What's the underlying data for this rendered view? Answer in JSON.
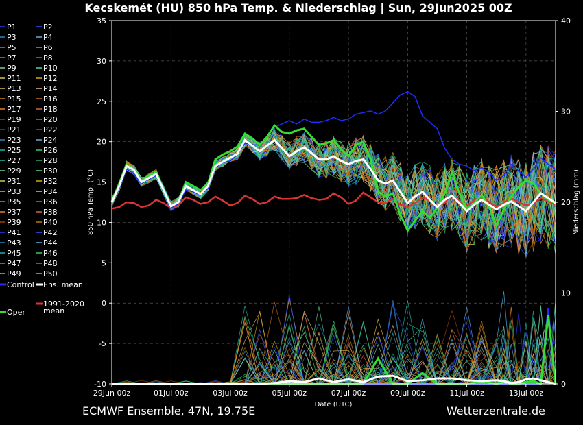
{
  "chart_data": {
    "type": "line",
    "title": "Kecskemét  (HU)  850 hPa Temp. & Niederschlag | Sun, 29Jun2025 00Z",
    "xlabel": "Date (UTC)",
    "ylabel_left": "850 hPa Temp. (°C)",
    "ylabel_right": "Niederschlag (mm)",
    "x_ticks": [
      "29Jun 00z",
      "01Jul 00z",
      "03Jul 00z",
      "05Jul 00z",
      "07Jul 00z",
      "09Jul 00z",
      "11Jul 00z",
      "13Jul 00z"
    ],
    "x_range_days": [
      0,
      15
    ],
    "y_left_range": [
      -10,
      35
    ],
    "y_left_ticks": [
      -10,
      -5,
      0,
      5,
      10,
      15,
      20,
      25,
      30,
      35
    ],
    "y_right_range": [
      0,
      40
    ],
    "y_right_ticks": [
      0,
      10,
      20,
      30,
      40
    ],
    "grid": true,
    "legend": {
      "placement": "left",
      "members": [
        "P1",
        "P2",
        "P3",
        "P4",
        "P5",
        "P6",
        "P7",
        "P8",
        "P9",
        "P10",
        "P11",
        "P12",
        "P13",
        "P14",
        "P15",
        "P16",
        "P17",
        "P18",
        "P19",
        "P20",
        "P21",
        "P22",
        "P23",
        "P24",
        "P25",
        "P26",
        "P27",
        "P28",
        "P29",
        "P30",
        "P31",
        "P32",
        "P33",
        "P34",
        "P35",
        "P36",
        "P37",
        "P38",
        "P39",
        "P40",
        "P41",
        "P42",
        "P43",
        "P44",
        "P45",
        "P46",
        "P47",
        "P48",
        "P49",
        "P50"
      ],
      "control_label": "Control",
      "mean_label": "Ens. mean",
      "oper_label": "Oper",
      "clim_label_1": "1991-2020",
      "clim_label_2": "mean"
    },
    "member_colors": [
      "#2a3cff",
      "#3355ff",
      "#2e86c1",
      "#5dade2",
      "#20b2aa",
      "#2ecc71",
      "#1abc9c",
      "#27ae60",
      "#7dcea0",
      "#58d68d",
      "#c8c85a",
      "#d4ac0d",
      "#e6b450",
      "#f0b27a",
      "#d68910",
      "#ca6f1e",
      "#e67e22",
      "#cd6155",
      "#a04000",
      "#b9770e"
    ],
    "temperature": {
      "x_days": [
        0,
        0.25,
        0.5,
        0.75,
        1,
        1.25,
        1.5,
        1.75,
        2,
        2.25,
        2.5,
        2.75,
        3,
        3.25,
        3.5,
        3.75,
        4,
        4.25,
        4.5,
        4.75,
        5,
        5.25,
        5.5,
        5.75,
        6,
        6.25,
        6.5,
        6.75,
        7,
        7.25,
        7.5,
        7.75,
        8,
        8.25,
        8.5,
        8.75,
        9,
        9.25,
        9.5,
        9.75,
        10,
        10.25,
        10.5,
        10.75,
        11,
        11.25,
        11.5,
        11.75,
        12,
        12.25,
        12.5,
        12.75,
        13,
        13.25,
        13.5,
        13.75,
        14,
        14.25,
        14.5,
        14.75,
        15
      ],
      "ens_mean": [
        12.5,
        14.5,
        17,
        16.5,
        15,
        15.5,
        16,
        14,
        12,
        12.5,
        14.5,
        14,
        13.5,
        14.5,
        17,
        17.5,
        18,
        18.5,
        20.2,
        19.5,
        18.8,
        19.5,
        20.2,
        19.2,
        18.2,
        18.8,
        19.3,
        18.6,
        17.8,
        17.8,
        18.2,
        17.6,
        17.2,
        17.6,
        17.8,
        16.6,
        15.2,
        14.8,
        15.2,
        13.8,
        12.4,
        13.2,
        13.8,
        12.8,
        11.9,
        12.8,
        13.3,
        12.4,
        11.4,
        12.2,
        12.8,
        12.2,
        11.6,
        12.2,
        12.6,
        12.0,
        11.4,
        12.5,
        13.6,
        13.0,
        12.4
      ],
      "oper": [
        12.6,
        14.8,
        17.2,
        16.6,
        15.2,
        15.8,
        16.2,
        14.0,
        12.0,
        12.5,
        15.0,
        14.5,
        14.0,
        14.8,
        17.8,
        18.4,
        18.8,
        19.4,
        21.0,
        20.4,
        19.6,
        20.6,
        22.0,
        21.2,
        21.0,
        21.4,
        21.6,
        20.6,
        19.6,
        19.8,
        20.2,
        19.0,
        18.2,
        19.6,
        20.0,
        17.8,
        13.8,
        13.2,
        13.6,
        11.0,
        9.0,
        10.2,
        11.4,
        10.6,
        11.8,
        13.6,
        16.2,
        13.6,
        11.6,
        12.4,
        13.4,
        12.0,
        9.6,
        11.6,
        13.2,
        14.4,
        15.2,
        14.8,
        13.6,
        12.8,
        12.4
      ],
      "control": [
        12.4,
        14.2,
        16.6,
        16.0,
        14.8,
        15.4,
        15.8,
        13.8,
        11.8,
        12.3,
        14.0,
        13.8,
        13.4,
        14.2,
        16.8,
        17.4,
        17.6,
        18.4,
        19.8,
        19.6,
        19.6,
        20.6,
        21.8,
        22.2,
        22.6,
        22.2,
        22.8,
        22.4,
        22.4,
        22.6,
        23.0,
        22.6,
        22.8,
        23.4,
        23.6,
        23.8,
        23.4,
        23.8,
        24.8,
        25.8,
        26.2,
        25.6,
        23.2,
        22.4,
        21.6,
        19.2,
        17.8,
        17.2,
        17.0,
        16.4,
        16.8,
        16.2,
        15.2,
        15.8,
        17.2,
        16.4,
        15.6,
        16.6,
        18.0,
        17.2,
        16.6
      ],
      "clim_mean": [
        11.7,
        11.9,
        12.5,
        12.4,
        11.9,
        12.1,
        12.8,
        12.4,
        11.8,
        12.1,
        13.1,
        12.8,
        12.3,
        12.5,
        13.2,
        12.7,
        12.1,
        12.4,
        13.3,
        12.9,
        12.3,
        12.5,
        13.2,
        12.9,
        12.9,
        13.0,
        13.4,
        13.0,
        12.8,
        12.9,
        13.6,
        13.1,
        12.3,
        12.7,
        13.7,
        13.1,
        12.5,
        12.4,
        12.9,
        12.2,
        11.9,
        12.4,
        13.1,
        12.7,
        11.9,
        12.5,
        13.3,
        12.6,
        12.1,
        12.7,
        13.2,
        12.5,
        11.9,
        12.4,
        13.0,
        12.5,
        12.1,
        12.4,
        13.0,
        12.6,
        12.2
      ]
    },
    "precipitation": {
      "x_days": [
        0,
        0.5,
        1,
        1.5,
        2,
        2.5,
        3,
        3.5,
        4,
        4.5,
        5,
        5.5,
        6,
        6.5,
        7,
        7.5,
        8,
        8.5,
        9,
        9.5,
        10,
        10.5,
        11,
        11.5,
        12,
        12.5,
        13,
        13.25,
        13.5,
        13.75,
        14,
        14.25,
        14.5,
        14.75,
        15
      ],
      "ens_mean": [
        0,
        0,
        0,
        0,
        0,
        0,
        0,
        0,
        0,
        0,
        0,
        0.1,
        0.3,
        0.2,
        0.6,
        0.2,
        0.5,
        0.2,
        0.8,
        0.9,
        0.3,
        0.4,
        0.6,
        0.6,
        0.4,
        0.3,
        0.4,
        0.3,
        0.1,
        0.2,
        0.5,
        0.6,
        0.4,
        0.2,
        0
      ],
      "oper": [
        0,
        0,
        0,
        0,
        0,
        0,
        0,
        0,
        0,
        0,
        0,
        0,
        0,
        0,
        0,
        0,
        0,
        0,
        2.8,
        0,
        0,
        1.2,
        0,
        0,
        0,
        0.3,
        0,
        0.2,
        0,
        0,
        0.2,
        0.3,
        0,
        7.6,
        0
      ],
      "control": [
        0,
        0,
        0,
        0,
        0,
        0,
        0,
        0,
        0,
        0,
        0,
        0,
        0,
        0,
        0,
        0,
        0,
        0,
        0,
        0,
        0,
        0,
        0,
        0,
        0,
        0,
        0,
        0,
        0,
        0,
        0,
        0,
        0,
        8.3,
        0
      ]
    }
  },
  "footer": {
    "left": "ECMWF Ensemble, 47N, 19.75E",
    "right": "Wetterzentrale.de"
  },
  "colors": {
    "background": "#000000",
    "grid": "#555555",
    "mean": "#ffffff",
    "oper": "#33dd33",
    "control": "#1f2bff",
    "clim": "#dd3333"
  }
}
